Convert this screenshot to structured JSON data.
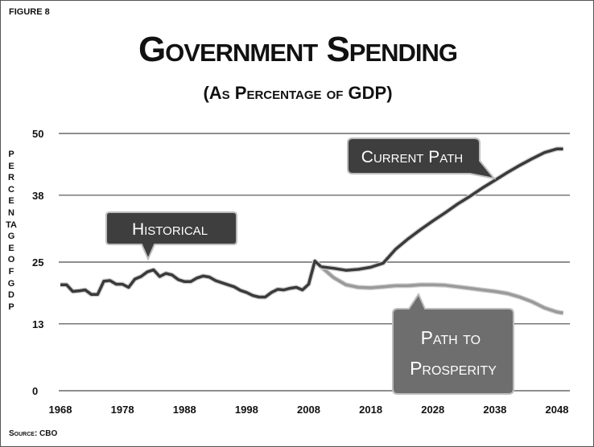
{
  "figure_label": "FIGURE 8",
  "title": "Government Spending",
  "subtitle": "(As Percentage of GDP)",
  "ylabel": "PERCENTAGE OF GDP",
  "source": "Source: CBO",
  "colors": {
    "historical": "#3a3a3a",
    "current_path": "#3a3a3a",
    "path_to_prosperity": "#9a9a9a",
    "callout_dark": "#3e3e3e",
    "callout_light": "#6e6e6e",
    "grid": "#4a4a4a"
  },
  "chart_data": {
    "type": "line",
    "title": "Government Spending",
    "subtitle": "(As Percentage of GDP)",
    "xlabel": "",
    "ylabel": "PERCENTAGE OF GDP",
    "xlim": [
      1968,
      2050
    ],
    "ylim": [
      0,
      50
    ],
    "xticks": [
      "1968",
      "1978",
      "1988",
      "1998",
      "2008",
      "2018",
      "2028",
      "2038",
      "2048"
    ],
    "yticks": [
      "0",
      "13",
      "25",
      "38",
      "50"
    ],
    "grid": "horizontal",
    "annotations": [
      "Historical",
      "Current Path",
      "Path to Prosperity"
    ],
    "series": [
      {
        "name": "Historical",
        "x": [
          1968,
          1969,
          1970,
          1971,
          1972,
          1973,
          1974,
          1975,
          1976,
          1977,
          1978,
          1979,
          1980,
          1981,
          1982,
          1983,
          1984,
          1985,
          1986,
          1987,
          1988,
          1989,
          1990,
          1991,
          1992,
          1993,
          1994,
          1995,
          1996,
          1997,
          1998,
          1999,
          2000,
          2001,
          2002,
          2003,
          2004,
          2005,
          2006,
          2007,
          2008,
          2009,
          2010
        ],
        "y": [
          20.6,
          20.6,
          19.3,
          19.4,
          19.6,
          18.7,
          18.7,
          21.3,
          21.4,
          20.7,
          20.7,
          20.1,
          21.7,
          22.2,
          23.1,
          23.5,
          22.2,
          22.8,
          22.5,
          21.6,
          21.2,
          21.2,
          21.9,
          22.3,
          22.1,
          21.4,
          21.0,
          20.6,
          20.2,
          19.5,
          19.1,
          18.5,
          18.2,
          18.2,
          19.1,
          19.7,
          19.6,
          19.9,
          20.1,
          19.6,
          20.7,
          25.2,
          24.1
        ]
      },
      {
        "name": "Current Path",
        "x": [
          2010,
          2012,
          2014,
          2016,
          2018,
          2020,
          2022,
          2024,
          2026,
          2028,
          2030,
          2032,
          2034,
          2036,
          2038,
          2040,
          2042,
          2044,
          2046,
          2048,
          2049
        ],
        "y": [
          24.1,
          23.8,
          23.4,
          23.6,
          24.0,
          24.8,
          27.5,
          29.5,
          31.3,
          33.0,
          34.6,
          36.3,
          37.8,
          39.4,
          40.9,
          42.4,
          43.8,
          45.1,
          46.3,
          47.0,
          47.0
        ]
      },
      {
        "name": "Path to Prosperity",
        "x": [
          2010,
          2012,
          2014,
          2016,
          2018,
          2020,
          2022,
          2024,
          2026,
          2028,
          2030,
          2032,
          2034,
          2036,
          2038,
          2040,
          2042,
          2044,
          2046,
          2048,
          2049
        ],
        "y": [
          24.1,
          22.0,
          20.6,
          20.1,
          20.0,
          20.2,
          20.4,
          20.4,
          20.6,
          20.6,
          20.5,
          20.2,
          19.9,
          19.6,
          19.3,
          18.9,
          18.2,
          17.3,
          16.1,
          15.3,
          15.1
        ]
      }
    ]
  }
}
